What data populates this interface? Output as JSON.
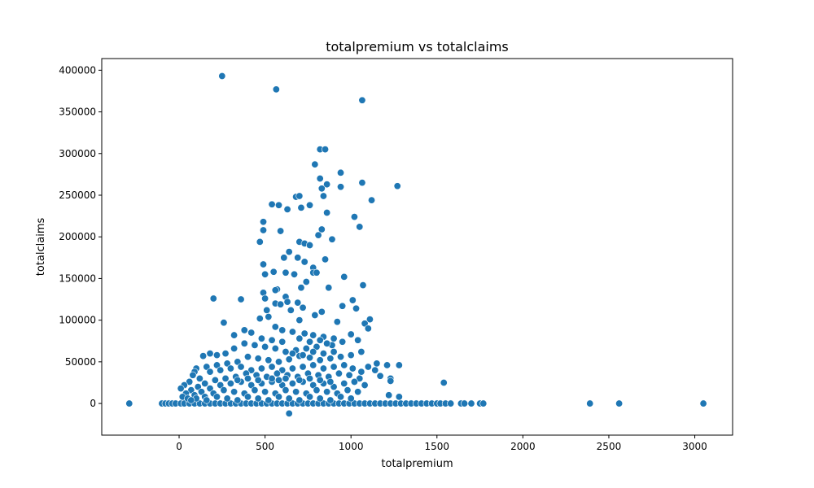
{
  "chart_data": {
    "type": "scatter",
    "title": "totalpremium vs totalclaims",
    "xlabel": "totalpremium",
    "ylabel": "totalclaims",
    "xlim": [
      -450,
      3220
    ],
    "ylim": [
      -38000,
      414000
    ],
    "x_ticks": [
      0,
      500,
      1000,
      1500,
      2000,
      2500,
      3000
    ],
    "y_ticks": [
      0,
      50000,
      100000,
      150000,
      200000,
      250000,
      300000,
      350000,
      400000
    ],
    "grid": false,
    "marker_color": "#1f77b4",
    "marker_edge_color": "#ffffff",
    "points": [
      [
        -290,
        0
      ],
      [
        -100,
        0
      ],
      [
        -80,
        0
      ],
      [
        -60,
        0
      ],
      [
        -40,
        0
      ],
      [
        -20,
        0
      ],
      [
        10,
        0
      ],
      [
        30,
        0
      ],
      [
        60,
        0
      ],
      [
        90,
        0
      ],
      [
        120,
        0
      ],
      [
        150,
        0
      ],
      [
        180,
        0
      ],
      [
        210,
        0
      ],
      [
        240,
        0
      ],
      [
        270,
        0
      ],
      [
        300,
        0
      ],
      [
        330,
        0
      ],
      [
        360,
        0
      ],
      [
        390,
        0
      ],
      [
        420,
        0
      ],
      [
        450,
        0
      ],
      [
        480,
        0
      ],
      [
        510,
        0
      ],
      [
        540,
        0
      ],
      [
        570,
        0
      ],
      [
        600,
        0
      ],
      [
        630,
        0
      ],
      [
        660,
        0
      ],
      [
        690,
        0
      ],
      [
        720,
        0
      ],
      [
        750,
        0
      ],
      [
        780,
        0
      ],
      [
        810,
        0
      ],
      [
        840,
        0
      ],
      [
        870,
        0
      ],
      [
        900,
        0
      ],
      [
        930,
        0
      ],
      [
        960,
        0
      ],
      [
        990,
        0
      ],
      [
        1020,
        0
      ],
      [
        1050,
        0
      ],
      [
        1080,
        0
      ],
      [
        1110,
        0
      ],
      [
        1140,
        0
      ],
      [
        1170,
        0
      ],
      [
        1200,
        0
      ],
      [
        1230,
        0
      ],
      [
        1260,
        0
      ],
      [
        1290,
        0
      ],
      [
        1320,
        0
      ],
      [
        1350,
        0
      ],
      [
        1380,
        0
      ],
      [
        1410,
        0
      ],
      [
        1440,
        0
      ],
      [
        1470,
        0
      ],
      [
        1500,
        0
      ],
      [
        1520,
        0
      ],
      [
        1550,
        0
      ],
      [
        1580,
        0
      ],
      [
        1640,
        0
      ],
      [
        1660,
        0
      ],
      [
        1700,
        0
      ],
      [
        1750,
        0
      ],
      [
        1770,
        0
      ],
      [
        2390,
        0
      ],
      [
        2560,
        0
      ],
      [
        3050,
        0
      ],
      [
        640,
        -12000
      ],
      [
        250,
        393000
      ],
      [
        565,
        377000
      ],
      [
        1065,
        364000
      ],
      [
        820,
        305000
      ],
      [
        850,
        305000
      ],
      [
        790,
        287000
      ],
      [
        940,
        277000
      ],
      [
        820,
        270000
      ],
      [
        1065,
        265000
      ],
      [
        1270,
        261000
      ],
      [
        860,
        263000
      ],
      [
        830,
        258000
      ],
      [
        940,
        260000
      ],
      [
        680,
        248000
      ],
      [
        700,
        249000
      ],
      [
        840,
        249000
      ],
      [
        1120,
        244000
      ],
      [
        540,
        239000
      ],
      [
        580,
        238000
      ],
      [
        760,
        238000
      ],
      [
        710,
        235000
      ],
      [
        630,
        233000
      ],
      [
        860,
        229000
      ],
      [
        1020,
        224000
      ],
      [
        490,
        218000
      ],
      [
        1050,
        212000
      ],
      [
        490,
        208000
      ],
      [
        830,
        209000
      ],
      [
        590,
        207000
      ],
      [
        810,
        202000
      ],
      [
        890,
        197000
      ],
      [
        470,
        194000
      ],
      [
        700,
        194000
      ],
      [
        730,
        192000
      ],
      [
        760,
        190000
      ],
      [
        640,
        182000
      ],
      [
        690,
        175000
      ],
      [
        610,
        175000
      ],
      [
        850,
        173000
      ],
      [
        730,
        170000
      ],
      [
        490,
        167000
      ],
      [
        780,
        163000
      ],
      [
        620,
        157000
      ],
      [
        500,
        155000
      ],
      [
        550,
        158000
      ],
      [
        780,
        157000
      ],
      [
        800,
        157000
      ],
      [
        670,
        155000
      ],
      [
        960,
        152000
      ],
      [
        740,
        146000
      ],
      [
        1070,
        142000
      ],
      [
        870,
        139000
      ],
      [
        710,
        139000
      ],
      [
        570,
        137000
      ],
      [
        560,
        136000
      ],
      [
        620,
        128000
      ],
      [
        490,
        133000
      ],
      [
        500,
        126000
      ],
      [
        200,
        126000
      ],
      [
        360,
        125000
      ],
      [
        1010,
        124000
      ],
      [
        560,
        120000
      ],
      [
        590,
        119000
      ],
      [
        630,
        122000
      ],
      [
        690,
        121000
      ],
      [
        950,
        117000
      ],
      [
        1030,
        114000
      ],
      [
        720,
        115000
      ],
      [
        650,
        112000
      ],
      [
        510,
        112000
      ],
      [
        830,
        110000
      ],
      [
        790,
        106000
      ],
      [
        1110,
        101000
      ],
      [
        260,
        97000
      ],
      [
        470,
        102000
      ],
      [
        520,
        104000
      ],
      [
        700,
        100000
      ],
      [
        920,
        98000
      ],
      [
        1080,
        96000
      ],
      [
        1100,
        90000
      ],
      [
        560,
        92000
      ],
      [
        600,
        88000
      ],
      [
        660,
        86000
      ],
      [
        730,
        84000
      ],
      [
        780,
        82000
      ],
      [
        840,
        80000
      ],
      [
        900,
        78000
      ],
      [
        420,
        85000
      ],
      [
        380,
        88000
      ],
      [
        320,
        82000
      ],
      [
        1000,
        83000
      ],
      [
        1040,
        76000
      ],
      [
        950,
        74000
      ],
      [
        890,
        70000
      ],
      [
        860,
        72000
      ],
      [
        800,
        68000
      ],
      [
        740,
        66000
      ],
      [
        680,
        64000
      ],
      [
        620,
        62000
      ],
      [
        560,
        66000
      ],
      [
        500,
        68000
      ],
      [
        440,
        70000
      ],
      [
        380,
        72000
      ],
      [
        320,
        66000
      ],
      [
        270,
        60000
      ],
      [
        220,
        58000
      ],
      [
        180,
        60000
      ],
      [
        140,
        57000
      ],
      [
        1060,
        62000
      ],
      [
        1000,
        58000
      ],
      [
        940,
        56000
      ],
      [
        880,
        54000
      ],
      [
        820,
        52000
      ],
      [
        760,
        55000
      ],
      [
        700,
        57000
      ],
      [
        640,
        53000
      ],
      [
        580,
        50000
      ],
      [
        520,
        52000
      ],
      [
        460,
        54000
      ],
      [
        400,
        56000
      ],
      [
        340,
        50000
      ],
      [
        280,
        48000
      ],
      [
        220,
        46000
      ],
      [
        160,
        44000
      ],
      [
        100,
        42000
      ],
      [
        90,
        38000
      ],
      [
        80,
        34000
      ],
      [
        1150,
        48000
      ],
      [
        1210,
        46000
      ],
      [
        1280,
        46000
      ],
      [
        1140,
        40000
      ],
      [
        1170,
        33000
      ],
      [
        1230,
        30000
      ],
      [
        1230,
        27000
      ],
      [
        1540,
        25000
      ],
      [
        1220,
        10000
      ],
      [
        1280,
        8000
      ],
      [
        1100,
        44000
      ],
      [
        1060,
        38000
      ],
      [
        1010,
        42000
      ],
      [
        960,
        46000
      ],
      [
        900,
        44000
      ],
      [
        840,
        42000
      ],
      [
        780,
        46000
      ],
      [
        720,
        44000
      ],
      [
        660,
        42000
      ],
      [
        600,
        40000
      ],
      [
        540,
        44000
      ],
      [
        480,
        42000
      ],
      [
        420,
        40000
      ],
      [
        360,
        44000
      ],
      [
        300,
        42000
      ],
      [
        240,
        40000
      ],
      [
        180,
        38000
      ],
      [
        120,
        30000
      ],
      [
        60,
        26000
      ],
      [
        30,
        22000
      ],
      [
        10,
        18000
      ],
      [
        1050,
        30000
      ],
      [
        990,
        34000
      ],
      [
        930,
        36000
      ],
      [
        870,
        32000
      ],
      [
        810,
        34000
      ],
      [
        750,
        36000
      ],
      [
        690,
        32000
      ],
      [
        630,
        34000
      ],
      [
        570,
        36000
      ],
      [
        510,
        32000
      ],
      [
        450,
        34000
      ],
      [
        390,
        36000
      ],
      [
        330,
        32000
      ],
      [
        270,
        30000
      ],
      [
        210,
        28000
      ],
      [
        150,
        24000
      ],
      [
        110,
        20000
      ],
      [
        70,
        16000
      ],
      [
        40,
        12000
      ],
      [
        20,
        8000
      ],
      [
        1080,
        22000
      ],
      [
        1020,
        26000
      ],
      [
        960,
        24000
      ],
      [
        900,
        20000
      ],
      [
        840,
        24000
      ],
      [
        780,
        22000
      ],
      [
        720,
        26000
      ],
      [
        660,
        24000
      ],
      [
        600,
        22000
      ],
      [
        540,
        26000
      ],
      [
        480,
        24000
      ],
      [
        420,
        22000
      ],
      [
        360,
        26000
      ],
      [
        300,
        24000
      ],
      [
        240,
        22000
      ],
      [
        180,
        18000
      ],
      [
        130,
        14000
      ],
      [
        90,
        10000
      ],
      [
        50,
        6000
      ],
      [
        1040,
        14000
      ],
      [
        980,
        16000
      ],
      [
        920,
        12000
      ],
      [
        860,
        14000
      ],
      [
        800,
        16000
      ],
      [
        740,
        12000
      ],
      [
        680,
        14000
      ],
      [
        620,
        16000
      ],
      [
        560,
        12000
      ],
      [
        500,
        14000
      ],
      [
        440,
        16000
      ],
      [
        380,
        12000
      ],
      [
        320,
        14000
      ],
      [
        260,
        16000
      ],
      [
        200,
        12000
      ],
      [
        150,
        8000
      ],
      [
        100,
        6000
      ],
      [
        70,
        4000
      ],
      [
        1000,
        6000
      ],
      [
        940,
        8000
      ],
      [
        880,
        4000
      ],
      [
        820,
        6000
      ],
      [
        760,
        8000
      ],
      [
        700,
        4000
      ],
      [
        640,
        6000
      ],
      [
        580,
        8000
      ],
      [
        520,
        4000
      ],
      [
        460,
        6000
      ],
      [
        400,
        8000
      ],
      [
        340,
        4000
      ],
      [
        280,
        6000
      ],
      [
        220,
        8000
      ],
      [
        160,
        4000
      ],
      [
        580,
        28000
      ],
      [
        620,
        30000
      ],
      [
        700,
        28000
      ],
      [
        760,
        30000
      ],
      [
        820,
        28000
      ],
      [
        880,
        26000
      ],
      [
        540,
        30000
      ],
      [
        460,
        28000
      ],
      [
        400,
        30000
      ],
      [
        340,
        28000
      ],
      [
        660,
        60000
      ],
      [
        720,
        58000
      ],
      [
        780,
        62000
      ],
      [
        840,
        60000
      ],
      [
        900,
        62000
      ],
      [
        600,
        74000
      ],
      [
        540,
        76000
      ],
      [
        480,
        78000
      ],
      [
        700,
        78000
      ],
      [
        760,
        74000
      ],
      [
        820,
        76000
      ]
    ]
  }
}
